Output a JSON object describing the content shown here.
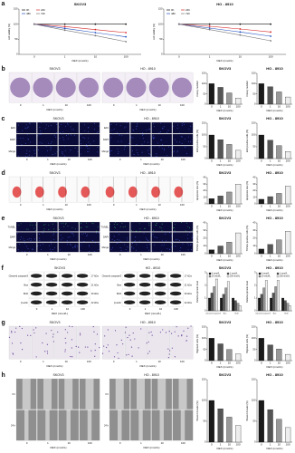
{
  "figure": {
    "panels": [
      {
        "label": "a",
        "charts": [
          {
            "type": "line",
            "title": "SKOV3",
            "ylabel": "cell viability (%)",
            "xlabel": "DEX (nmol/L)",
            "categories": [
              "0",
              "1",
              "10",
              "100"
            ],
            "series": [
              {
                "name": "0h",
                "color": "#111111",
                "values": [
                  100,
                  100,
                  100,
                  100
                ]
              },
              {
                "name": "24h",
                "color": "#d62728",
                "values": [
                  100,
                  92,
                  82,
                  72
                ]
              },
              {
                "name": "48h",
                "color": "#1f4fbf",
                "values": [
                  100,
                  86,
                  72,
                  58
                ]
              },
              {
                "name": "72h",
                "color": "#777777",
                "values": [
                  100,
                  80,
                  62,
                  42
                ]
              }
            ],
            "ylim": [
              0,
              150
            ],
            "yticks": [
              0,
              50,
              100,
              150
            ]
          },
          {
            "type": "line",
            "title": "HO - 8910",
            "ylabel": "cell viability (%)",
            "xlabel": "DEX (nmol/L)",
            "categories": [
              "0",
              "1",
              "10",
              "100"
            ],
            "series": [
              {
                "name": "0h",
                "color": "#111111",
                "values": [
                  100,
                  100,
                  100,
                  100
                ]
              },
              {
                "name": "24h",
                "color": "#d62728",
                "values": [
                  100,
                  93,
                  84,
                  74
                ]
              },
              {
                "name": "48h",
                "color": "#1f4fbf",
                "values": [
                  100,
                  87,
                  74,
                  60
                ]
              },
              {
                "name": "72h",
                "color": "#777777",
                "values": [
                  100,
                  82,
                  64,
                  45
                ]
              }
            ],
            "ylim": [
              0,
              150
            ],
            "yticks": [
              0,
              50,
              100,
              150
            ]
          }
        ]
      },
      {
        "label": "b",
        "groups": [
          {
            "title": "SKOV3"
          },
          {
            "title": "HO - 8910"
          }
        ],
        "doses": [
          "0",
          "1",
          "10",
          "100"
        ],
        "xlabel": "DEX (nmol/L)",
        "charts": [
          {
            "type": "bar",
            "title": "SKOV3",
            "ylabel": "Colony number",
            "xlabel": "DEX (nmol/L)",
            "categories": [
              "0",
              "1",
              "10",
              "100"
            ],
            "values": [
              100,
              82,
              55,
              30
            ],
            "colors": [
              "#1a1a1a",
              "#555555",
              "#999999",
              "#eeeeee"
            ],
            "ylim": [
              0,
              150
            ],
            "yticks": [
              0,
              50,
              100,
              150
            ]
          },
          {
            "type": "bar",
            "title": "HO - 8910",
            "ylabel": "Colony number",
            "xlabel": "DEX (nmol/L)",
            "categories": [
              "0",
              "1",
              "10",
              "100"
            ],
            "values": [
              100,
              85,
              60,
              35
            ],
            "colors": [
              "#1a1a1a",
              "#555555",
              "#999999",
              "#eeeeee"
            ],
            "ylim": [
              0,
              150
            ],
            "yticks": [
              0,
              50,
              100,
              150
            ]
          }
        ]
      },
      {
        "label": "c",
        "groups": [
          {
            "title": "SKOV3"
          },
          {
            "title": "HO - 8910"
          }
        ],
        "rows": [
          "EdU",
          "DAPI",
          "Merge"
        ],
        "doses": [
          "0",
          "1",
          "10",
          "100"
        ],
        "xlabel": "DEX (nmol/L)",
        "charts": [
          {
            "type": "bar",
            "title": "SKOV3",
            "ylabel": "EdU positive cells (%)",
            "xlabel": "DEX (nmol/L)",
            "categories": [
              "0",
              "1",
              "10",
              "100"
            ],
            "values": [
              100,
              80,
              60,
              35
            ],
            "colors": [
              "#1a1a1a",
              "#555555",
              "#999999",
              "#eeeeee"
            ],
            "ylim": [
              0,
              150
            ],
            "yticks": [
              0,
              50,
              100,
              150
            ]
          },
          {
            "type": "bar",
            "title": "HO - 8910",
            "ylabel": "EdU positive cells (%)",
            "xlabel": "DEX (nmol/L)",
            "categories": [
              "0",
              "1",
              "10",
              "100"
            ],
            "values": [
              100,
              78,
              55,
              30
            ],
            "colors": [
              "#1a1a1a",
              "#555555",
              "#999999",
              "#eeeeee"
            ],
            "ylim": [
              0,
              150
            ],
            "yticks": [
              0,
              50,
              100,
              150
            ]
          }
        ]
      },
      {
        "label": "d",
        "groups": [
          {
            "title": "SKOV3"
          },
          {
            "title": "HO - 8910"
          }
        ],
        "doses": [
          "0",
          "1",
          "10",
          "100"
        ],
        "xlabel": "DEX (nmol/L)",
        "charts": [
          {
            "type": "bar",
            "title": "SKOV3",
            "ylabel": "Apoptosis rate (%)",
            "xlabel": "DEX (nmol/L)",
            "categories": [
              "0",
              "1",
              "10",
              "100"
            ],
            "values": [
              8,
              12,
              18,
              30
            ],
            "colors": [
              "#1a1a1a",
              "#555555",
              "#999999",
              "#eeeeee"
            ],
            "ylim": [
              0,
              40
            ],
            "yticks": [
              0,
              10,
              20,
              30,
              40
            ]
          },
          {
            "type": "bar",
            "title": "HO - 8910",
            "ylabel": "Apoptosis rate (%)",
            "xlabel": "DEX (nmol/L)",
            "categories": [
              "0",
              "1",
              "10",
              "100"
            ],
            "values": [
              7,
              11,
              16,
              27
            ],
            "colors": [
              "#1a1a1a",
              "#555555",
              "#999999",
              "#eeeeee"
            ],
            "ylim": [
              0,
              40
            ],
            "yticks": [
              0,
              10,
              20,
              30,
              40
            ]
          }
        ]
      },
      {
        "label": "e",
        "groups": [
          {
            "title": "SKOV3"
          },
          {
            "title": "HO - 8910"
          }
        ],
        "rows": [
          "TUNEL",
          "DAPI",
          "Merge"
        ],
        "doses": [
          "0",
          "1",
          "10",
          "100"
        ],
        "xlabel": "DEX (nmol/L)",
        "charts": [
          {
            "type": "bar",
            "title": "SKOV3",
            "ylabel": "TUNEL positive cells (%)",
            "xlabel": "DEX (nmol/L)",
            "categories": [
              "0",
              "1",
              "10",
              "100"
            ],
            "values": [
              5,
              10,
              15,
              27
            ],
            "colors": [
              "#1a1a1a",
              "#555555",
              "#999999",
              "#eeeeee"
            ],
            "ylim": [
              0,
              40
            ],
            "yticks": [
              0,
              10,
              20,
              30,
              40
            ]
          },
          {
            "type": "bar",
            "title": "HO - 8910",
            "ylabel": "TUNEL positive cells (%)",
            "xlabel": "DEX (nmol/L)",
            "categories": [
              "0",
              "1",
              "10",
              "100"
            ],
            "values": [
              6,
              12,
              18,
              29
            ],
            "colors": [
              "#1a1a1a",
              "#555555",
              "#999999",
              "#eeeeee"
            ],
            "ylim": [
              0,
              40
            ],
            "yticks": [
              0,
              10,
              20,
              30,
              40
            ]
          }
        ]
      },
      {
        "label": "f",
        "groups": [
          {
            "title": "SKOV3"
          },
          {
            "title": "HO - 8910"
          }
        ],
        "rows": [
          "Cleaved caspase3",
          "Bax",
          "Bcl2",
          "β-actin"
        ],
        "kda": [
          "17 kDa",
          "21 kDa",
          "26 kDa",
          "42 kDa"
        ],
        "doses": [
          "0",
          "1",
          "10",
          "100"
        ],
        "xlabel": "DEX (nmol/L)",
        "charts": [
          {
            "type": "grouped_bar",
            "title": "SKOV3",
            "ylabel": "Relative protein level",
            "categories": [
              "Cleaved caspase3",
              "Bax",
              "Bcl2"
            ],
            "series": [
              {
                "name": "0 nmol/L",
                "color": "#1a1a1a",
                "values": [
                  1,
                  1,
                  1
                ]
              },
              {
                "name": "1 nmol/L",
                "color": "#555555",
                "values": [
                  1.4,
                  1.3,
                  0.8
                ]
              },
              {
                "name": "10 nmol/L",
                "color": "#999999",
                "values": [
                  1.9,
                  1.8,
                  0.6
                ]
              },
              {
                "name": "100 nmol/L",
                "color": "#eeeeee",
                "values": [
                  2.5,
                  2.3,
                  0.4
                ]
              }
            ],
            "ylim": [
              0,
              3
            ],
            "yticks": [
              0,
              1,
              2,
              3
            ]
          },
          {
            "type": "grouped_bar",
            "title": "HO - 8910",
            "ylabel": "Relative protein level",
            "categories": [
              "Cleaved caspase3",
              "Bax",
              "Bcl2"
            ],
            "series": [
              {
                "name": "0 nmol/L",
                "color": "#1a1a1a",
                "values": [
                  1,
                  1,
                  1
                ]
              },
              {
                "name": "1 nmol/L",
                "color": "#555555",
                "values": [
                  1.3,
                  1.4,
                  0.8
                ]
              },
              {
                "name": "10 nmol/L",
                "color": "#999999",
                "values": [
                  1.8,
                  1.9,
                  0.6
                ]
              },
              {
                "name": "100 nmol/L",
                "color": "#eeeeee",
                "values": [
                  2.4,
                  2.4,
                  0.4
                ]
              }
            ],
            "ylim": [
              0,
              3
            ],
            "yticks": [
              0,
              1,
              2,
              3
            ]
          }
        ]
      },
      {
        "label": "g",
        "groups": [
          {
            "title": "SKOV3"
          },
          {
            "title": "HO - 8910"
          }
        ],
        "doses": [
          "0",
          "1",
          "10",
          "100"
        ],
        "xlabel": "DEX (nmol/L)",
        "charts": [
          {
            "type": "bar",
            "title": "SKOV3",
            "ylabel": "Migrated cells (%)",
            "xlabel": "DEX (nmol/L)",
            "categories": [
              "0",
              "1",
              "10",
              "100"
            ],
            "values": [
              100,
              75,
              50,
              30
            ],
            "colors": [
              "#1a1a1a",
              "#555555",
              "#999999",
              "#eeeeee"
            ],
            "ylim": [
              0,
              150
            ],
            "yticks": [
              0,
              50,
              100,
              150
            ]
          },
          {
            "type": "bar",
            "title": "HO - 8910",
            "ylabel": "Migrated cells (%)",
            "xlabel": "DEX (nmol/L)",
            "categories": [
              "0",
              "1",
              "10",
              "100"
            ],
            "values": [
              100,
              70,
              52,
              28
            ],
            "colors": [
              "#1a1a1a",
              "#555555",
              "#999999",
              "#eeeeee"
            ],
            "ylim": [
              0,
              150
            ],
            "yticks": [
              0,
              50,
              100,
              150
            ]
          }
        ]
      },
      {
        "label": "h",
        "groups": [
          {
            "title": "SKOV3"
          },
          {
            "title": "HO - 8910"
          }
        ],
        "rows": [
          "0 h",
          "24 h"
        ],
        "doses": [
          "0",
          "1",
          "10",
          "100"
        ],
        "xlabel": "DEX (nmol/L)",
        "charts": [
          {
            "type": "bar",
            "title": "SKOV3",
            "ylabel": "Wound closure (%)",
            "xlabel": "DEX (nmol/L)",
            "categories": [
              "0",
              "1",
              "10",
              "100"
            ],
            "values": [
              100,
              80,
              60,
              40
            ],
            "colors": [
              "#1a1a1a",
              "#555555",
              "#999999",
              "#eeeeee"
            ],
            "ylim": [
              0,
              150
            ],
            "yticks": [
              0,
              50,
              100,
              150
            ]
          },
          {
            "type": "bar",
            "title": "HO - 8910",
            "ylabel": "Wound closure (%)",
            "xlabel": "DEX (nmol/L)",
            "categories": [
              "0",
              "1",
              "10",
              "100"
            ],
            "values": [
              100,
              78,
              55,
              35
            ],
            "colors": [
              "#1a1a1a",
              "#555555",
              "#999999",
              "#eeeeee"
            ],
            "ylim": [
              0,
              150
            ],
            "yticks": [
              0,
              50,
              100,
              150
            ]
          }
        ]
      }
    ]
  }
}
